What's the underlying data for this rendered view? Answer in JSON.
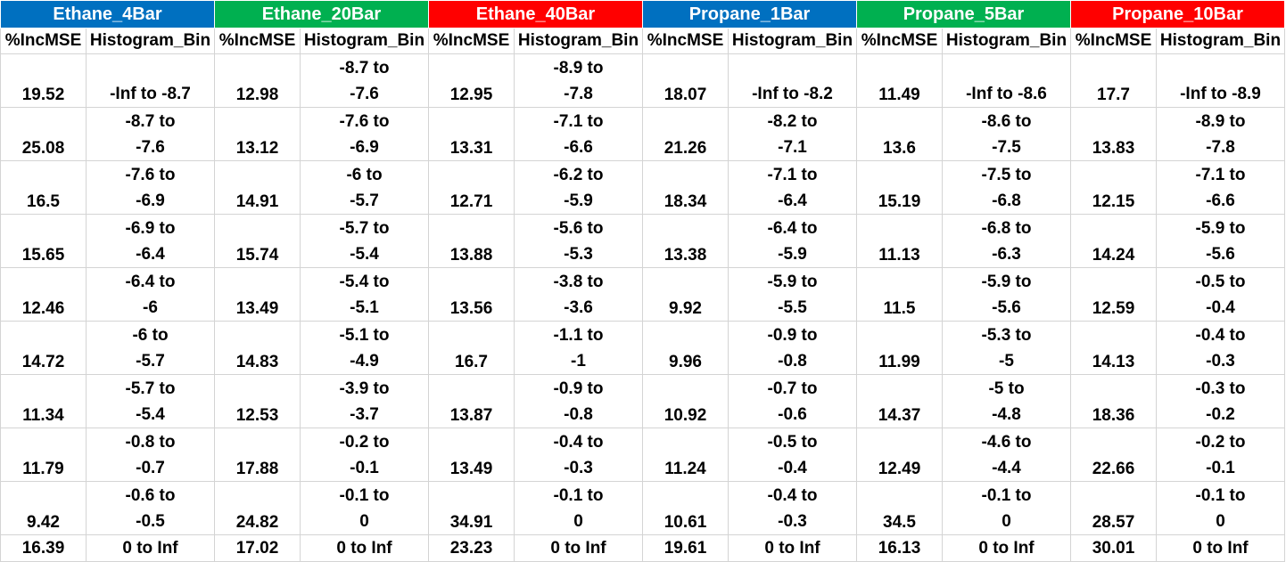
{
  "colors": {
    "blue": "#0070c0",
    "green": "#00b050",
    "red": "#ff0000",
    "grid": "#d4d4d4"
  },
  "groups": [
    {
      "title": "Ethane_4Bar",
      "color": "#0070c0"
    },
    {
      "title": "Ethane_20Bar",
      "color": "#00b050"
    },
    {
      "title": "Ethane_40Bar",
      "color": "#ff0000"
    },
    {
      "title": "Propane_1Bar",
      "color": "#0070c0"
    },
    {
      "title": "Propane_5Bar",
      "color": "#00b050"
    },
    {
      "title": "Propane_10Bar",
      "color": "#ff0000"
    }
  ],
  "subheaders": {
    "mse": "%IncMSE",
    "bin": "Histogram_Bin"
  },
  "rows": [
    {
      "cells": [
        {
          "mse": "19.52",
          "bin1": "-Inf to -8.7",
          "bin2": ""
        },
        {
          "mse": "12.98",
          "bin1": "-8.7 to",
          "bin2": "-7.6"
        },
        {
          "mse": "12.95",
          "bin1": "-8.9 to",
          "bin2": "-7.8"
        },
        {
          "mse": "18.07",
          "bin1": "-Inf to -8.2",
          "bin2": ""
        },
        {
          "mse": "11.49",
          "bin1": "-Inf to -8.6",
          "bin2": ""
        },
        {
          "mse": "17.7",
          "bin1": "-Inf to -8.9",
          "bin2": ""
        }
      ]
    },
    {
      "cells": [
        {
          "mse": "25.08",
          "bin1": "-8.7 to",
          "bin2": "-7.6"
        },
        {
          "mse": "13.12",
          "bin1": "-7.6 to",
          "bin2": "-6.9"
        },
        {
          "mse": "13.31",
          "bin1": "-7.1 to",
          "bin2": "-6.6"
        },
        {
          "mse": "21.26",
          "bin1": "-8.2 to",
          "bin2": "-7.1"
        },
        {
          "mse": "13.6",
          "bin1": "-8.6 to",
          "bin2": "-7.5"
        },
        {
          "mse": "13.83",
          "bin1": "-8.9 to",
          "bin2": "-7.8"
        }
      ]
    },
    {
      "cells": [
        {
          "mse": "16.5",
          "bin1": "-7.6 to",
          "bin2": "-6.9"
        },
        {
          "mse": "14.91",
          "bin1": "-6 to",
          "bin2": "-5.7"
        },
        {
          "mse": "12.71",
          "bin1": "-6.2 to",
          "bin2": "-5.9"
        },
        {
          "mse": "18.34",
          "bin1": "-7.1 to",
          "bin2": "-6.4"
        },
        {
          "mse": "15.19",
          "bin1": "-7.5 to",
          "bin2": "-6.8"
        },
        {
          "mse": "12.15",
          "bin1": "-7.1 to",
          "bin2": "-6.6"
        }
      ]
    },
    {
      "cells": [
        {
          "mse": "15.65",
          "bin1": "-6.9 to",
          "bin2": "-6.4"
        },
        {
          "mse": "15.74",
          "bin1": "-5.7 to",
          "bin2": "-5.4"
        },
        {
          "mse": "13.88",
          "bin1": "-5.6 to",
          "bin2": "-5.3"
        },
        {
          "mse": "13.38",
          "bin1": "-6.4 to",
          "bin2": "-5.9"
        },
        {
          "mse": "11.13",
          "bin1": "-6.8 to",
          "bin2": "-6.3"
        },
        {
          "mse": "14.24",
          "bin1": "-5.9 to",
          "bin2": "-5.6"
        }
      ]
    },
    {
      "cells": [
        {
          "mse": "12.46",
          "bin1": "-6.4 to",
          "bin2": "-6"
        },
        {
          "mse": "13.49",
          "bin1": "-5.4 to",
          "bin2": "-5.1"
        },
        {
          "mse": "13.56",
          "bin1": "-3.8 to",
          "bin2": "-3.6"
        },
        {
          "mse": "9.92",
          "bin1": "-5.9 to",
          "bin2": "-5.5"
        },
        {
          "mse": "11.5",
          "bin1": "-5.9 to",
          "bin2": "-5.6"
        },
        {
          "mse": "12.59",
          "bin1": "-0.5 to",
          "bin2": "-0.4"
        }
      ]
    },
    {
      "cells": [
        {
          "mse": "14.72",
          "bin1": "-6 to",
          "bin2": "-5.7"
        },
        {
          "mse": "14.83",
          "bin1": "-5.1 to",
          "bin2": "-4.9"
        },
        {
          "mse": "16.7",
          "bin1": "-1.1 to",
          "bin2": "-1"
        },
        {
          "mse": "9.96",
          "bin1": "-0.9 to",
          "bin2": "-0.8"
        },
        {
          "mse": "11.99",
          "bin1": "-5.3 to",
          "bin2": "-5"
        },
        {
          "mse": "14.13",
          "bin1": "-0.4 to",
          "bin2": "-0.3"
        }
      ]
    },
    {
      "cells": [
        {
          "mse": "11.34",
          "bin1": "-5.7 to",
          "bin2": "-5.4"
        },
        {
          "mse": "12.53",
          "bin1": "-3.9 to",
          "bin2": "-3.7"
        },
        {
          "mse": "13.87",
          "bin1": "-0.9 to",
          "bin2": "-0.8"
        },
        {
          "mse": "10.92",
          "bin1": "-0.7 to",
          "bin2": "-0.6"
        },
        {
          "mse": "14.37",
          "bin1": "-5 to",
          "bin2": "-4.8"
        },
        {
          "mse": "18.36",
          "bin1": "-0.3 to",
          "bin2": "-0.2"
        }
      ]
    },
    {
      "cells": [
        {
          "mse": "11.79",
          "bin1": "-0.8 to",
          "bin2": "-0.7"
        },
        {
          "mse": "17.88",
          "bin1": "-0.2 to",
          "bin2": "-0.1"
        },
        {
          "mse": "13.49",
          "bin1": "-0.4 to",
          "bin2": "-0.3"
        },
        {
          "mse": "11.24",
          "bin1": "-0.5 to",
          "bin2": "-0.4"
        },
        {
          "mse": "12.49",
          "bin1": "-4.6 to",
          "bin2": "-4.4"
        },
        {
          "mse": "22.66",
          "bin1": "-0.2 to",
          "bin2": "-0.1"
        }
      ]
    },
    {
      "cells": [
        {
          "mse": "9.42",
          "bin1": "-0.6 to",
          "bin2": "-0.5"
        },
        {
          "mse": "24.82",
          "bin1": "-0.1 to",
          "bin2": "0"
        },
        {
          "mse": "34.91",
          "bin1": "-0.1 to",
          "bin2": "0"
        },
        {
          "mse": "10.61",
          "bin1": "-0.4 to",
          "bin2": "-0.3"
        },
        {
          "mse": "34.5",
          "bin1": "-0.1 to",
          "bin2": "0"
        },
        {
          "mse": "28.57",
          "bin1": "-0.1 to",
          "bin2": "0"
        }
      ]
    },
    {
      "cells": [
        {
          "mse": "16.39",
          "bin1": "0 to Inf",
          "bin2": ""
        },
        {
          "mse": "17.02",
          "bin1": "0 to Inf",
          "bin2": ""
        },
        {
          "mse": "23.23",
          "bin1": "0 to Inf",
          "bin2": ""
        },
        {
          "mse": "19.61",
          "bin1": "0 to Inf",
          "bin2": ""
        },
        {
          "mse": "16.13",
          "bin1": "0 to Inf",
          "bin2": ""
        },
        {
          "mse": "30.01",
          "bin1": "0 to Inf",
          "bin2": ""
        }
      ]
    }
  ]
}
